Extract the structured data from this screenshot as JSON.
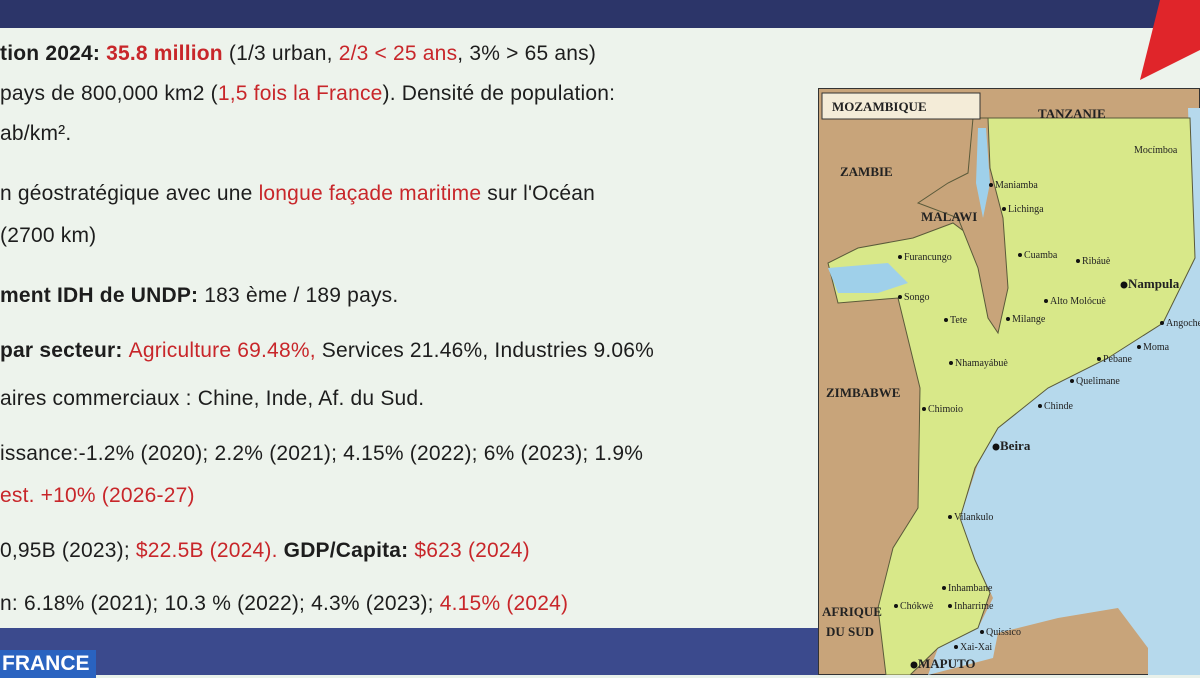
{
  "lines": [
    {
      "segments": [
        {
          "text": "tion 2024: ",
          "bold": true
        },
        {
          "text": "35.8 million",
          "bold": true,
          "color": "#c8262a"
        },
        {
          "text": " (1/3 urban, "
        },
        {
          "text": "2/3 < 25 ans",
          "color": "#c8262a"
        },
        {
          "text": ", 3% > 65 ans)"
        }
      ]
    },
    {
      "segments": [
        {
          "text": "pays de 800,000 km2 ("
        },
        {
          "text": "1,5 fois la France",
          "color": "#c8262a"
        },
        {
          "text": "). Densité de population:"
        }
      ]
    },
    {
      "segments": [
        {
          "text": "ab/km²."
        }
      ]
    },
    {
      "segments": [
        {
          "text": "n géostratégique avec une "
        },
        {
          "text": "longue façade maritime",
          "color": "#c8262a"
        },
        {
          "text": " sur l'Océan"
        }
      ]
    },
    {
      "segments": [
        {
          "text": "(2700 km)"
        }
      ]
    },
    {
      "segments": [
        {
          "text": "ment IDH de UNDP:",
          "bold": true
        },
        {
          "text": " 183 ème / 189 pays."
        }
      ]
    },
    {
      "segments": [
        {
          "text": "par secteur: ",
          "bold": true
        },
        {
          "text": "Agriculture 69.48%,",
          "color": "#c8262a"
        },
        {
          "text": " Services 21.46%, Industries 9.06%"
        }
      ]
    },
    {
      "segments": [
        {
          "text": "aires commerciaux : Chine, Inde, Af. du Sud."
        }
      ]
    },
    {
      "segments": [
        {
          "text": "issance:-1.2% (2020); 2.2% (2021); 4.15% (2022); 6% (2023); 1.9%"
        }
      ]
    },
    {
      "segments": [
        {
          "text": "est. +10% (2026-27)",
          "color": "#c8262a"
        }
      ]
    },
    {
      "segments": [
        {
          "text": "0,95B (2023); "
        },
        {
          "text": "$22.5B (2024).",
          "color": "#c8262a"
        },
        {
          "text": " GDP/Capita: ",
          "bold": true
        },
        {
          "text": "$623 (2024)",
          "color": "#c8262a"
        }
      ]
    },
    {
      "segments": [
        {
          "text": "n: 6.18% (2021); 10.3 % (2022); 4.3% (2023); "
        },
        {
          "text": "4.15% (2024)",
          "color": "#c8262a"
        }
      ]
    }
  ],
  "footer": "FRANCE",
  "map": {
    "title": "MOZAMBIQUE",
    "labels": [
      "TANZANIE",
      "ZAMBIE",
      "MALAWI",
      "Lichinga",
      "Maniamba",
      "Cuamba",
      "Ribáuè",
      "Nampula",
      "Furancungo",
      "Songo",
      "Tete",
      "Alto Molócuè",
      "Milange",
      "Nhamayábuè",
      "Quelimane",
      "Pebane",
      "Moma",
      "Chinde",
      "ZIMBABWE",
      "Chimoio",
      "Beira",
      "Vilankulo",
      "Inhambane",
      "Chókwè",
      "Inharrime",
      "Quissico",
      "Xai-Xai",
      "MAPUTO",
      "AFRIQUE",
      "DU SUD",
      "Mocímboa",
      "Angoche"
    ]
  }
}
